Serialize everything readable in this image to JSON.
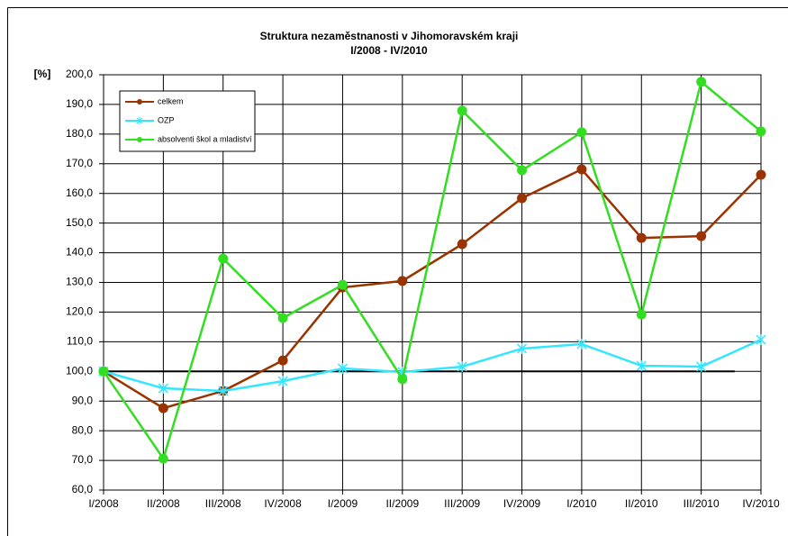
{
  "chart_data": {
    "type": "line",
    "title": "Struktura nezaměstnanosti v Jihomoravském kraji",
    "subtitle": "I/2008 - IV/2010",
    "y_label": "[%]",
    "categories": [
      "I/2008",
      "II/2008",
      "III/2008",
      "IV/2008",
      "I/2009",
      "II/2009",
      "III/2009",
      "IV/2009",
      "I/2010",
      "II/2010",
      "III/2010",
      "IV/2010"
    ],
    "series": [
      {
        "name": "celkem",
        "color": "#993300",
        "marker": "circle",
        "values": [
          100,
          87.6,
          93.4,
          103.7,
          128.3,
          130.5,
          142.9,
          158.4,
          168.1,
          145.0,
          145.6,
          166.3
        ]
      },
      {
        "name": "OZP",
        "color": "#33e6ff",
        "marker": "star",
        "values": [
          100,
          94.3,
          93.4,
          96.7,
          101.0,
          99.8,
          101.6,
          107.7,
          109.2,
          101.9,
          101.6,
          110.7
        ]
      },
      {
        "name": "absolventi škol a mladiství",
        "color": "#33dd22",
        "marker": "circle",
        "values": [
          100,
          70.6,
          138.0,
          118.0,
          129.2,
          97.4,
          187.9,
          167.8,
          180.6,
          119.2,
          197.6,
          180.9
        ]
      }
    ],
    "reference_line": 100,
    "ylim": [
      60,
      200
    ],
    "yticks": [
      {
        "value": 60,
        "label": "60,0"
      },
      {
        "value": 70,
        "label": "70,0"
      },
      {
        "value": 80,
        "label": "80,0"
      },
      {
        "value": 90,
        "label": "90,0"
      },
      {
        "value": 100,
        "label": "100,0"
      },
      {
        "value": 110,
        "label": "110,0"
      },
      {
        "value": 120,
        "label": "120,0"
      },
      {
        "value": 130,
        "label": "130,0"
      },
      {
        "value": 140,
        "label": "140,0"
      },
      {
        "value": 150,
        "label": "150,0"
      },
      {
        "value": 160,
        "label": "160,0"
      },
      {
        "value": 170,
        "label": "170,0"
      },
      {
        "value": 180,
        "label": "180,0"
      },
      {
        "value": 190,
        "label": "190,0"
      },
      {
        "value": 200,
        "label": "200,0"
      }
    ],
    "grid": true,
    "legend": "upper left"
  }
}
